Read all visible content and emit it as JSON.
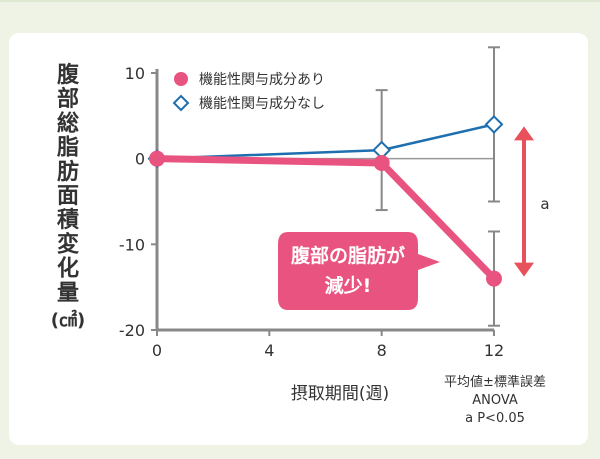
{
  "chart_data": {
    "type": "line",
    "ylabel": "腹部総脂肪面積変化量",
    "yunit": "(㎠)",
    "xlabel": "摂取期間(週)",
    "x": [
      0,
      8,
      12
    ],
    "xticks": [
      "0",
      "4",
      "8",
      "12"
    ],
    "ylim": [
      -20,
      10
    ],
    "yticks": [
      "10",
      "0",
      "-10",
      "-20"
    ],
    "legend_position": "top-left",
    "series": [
      {
        "name": "機能性関与成分あり",
        "color": "#e8537f",
        "marker": "circle",
        "values": [
          0,
          -0.5,
          -14
        ],
        "errors": [
          0,
          0,
          5.5
        ]
      },
      {
        "name": "機能性関与成分なし",
        "color": "#1d6fb0",
        "marker": "diamond",
        "values": [
          0,
          1,
          4
        ],
        "errors": [
          0,
          7,
          9
        ]
      }
    ],
    "callout": {
      "lines": [
        "腹部の脂肪が",
        "減少!"
      ],
      "color": "#e8537f"
    },
    "significance": {
      "label": "a",
      "color": "#e8505b"
    },
    "notes": [
      "平均値±標準誤差",
      "ANOVA",
      "a  P<0.05"
    ]
  }
}
